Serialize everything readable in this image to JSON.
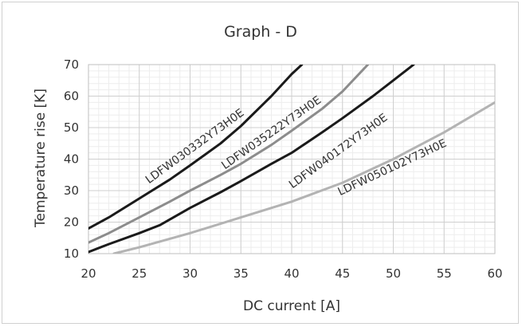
{
  "chart_data": {
    "type": "line",
    "title": "Graph - D",
    "xlabel": "DC current [A]",
    "ylabel": "Temperature rise [K]",
    "xlim": [
      20,
      60
    ],
    "ylim": [
      10,
      70
    ],
    "x_ticks": [
      20,
      25,
      30,
      35,
      40,
      45,
      50,
      55,
      60
    ],
    "y_ticks": [
      10,
      20,
      30,
      40,
      50,
      60,
      70
    ],
    "minor_grid": true,
    "grid": true,
    "series": [
      {
        "name": "LDFW030332Y73H0E",
        "color": "#1a1a1a",
        "x": [
          20,
          22,
          25,
          28,
          30,
          33,
          35,
          38,
          40,
          41
        ],
        "y": [
          18,
          21.5,
          27.5,
          33.5,
          38,
          45,
          50.5,
          60,
          67,
          70
        ]
      },
      {
        "name": "LDFW035222Y73H0E",
        "color": "#8c8c8c",
        "x": [
          20,
          22,
          25,
          28,
          30,
          33,
          35,
          38,
          40,
          43,
          45,
          47.5
        ],
        "y": [
          13.5,
          16.5,
          21.5,
          26.5,
          30,
          35,
          38.5,
          44.5,
          49,
          56,
          61.5,
          70
        ]
      },
      {
        "name": "LDFW040172Y73H0E",
        "color": "#1a1a1a",
        "x": [
          20,
          22,
          25,
          27,
          30,
          33,
          35,
          38,
          40,
          43,
          45,
          48,
          50,
          52
        ],
        "y": [
          10.5,
          13,
          16.5,
          19,
          24.5,
          29.5,
          33,
          38.5,
          42,
          48.5,
          53,
          60,
          65,
          70
        ]
      },
      {
        "name": "LDFW050102Y73H0E",
        "color": "#b3b3b3",
        "x": [
          22.5,
          25,
          30,
          35,
          40,
          45,
          50,
          55,
          60
        ],
        "y": [
          10,
          12,
          16.5,
          21.5,
          26.5,
          32.5,
          40,
          48.5,
          58
        ]
      }
    ]
  }
}
